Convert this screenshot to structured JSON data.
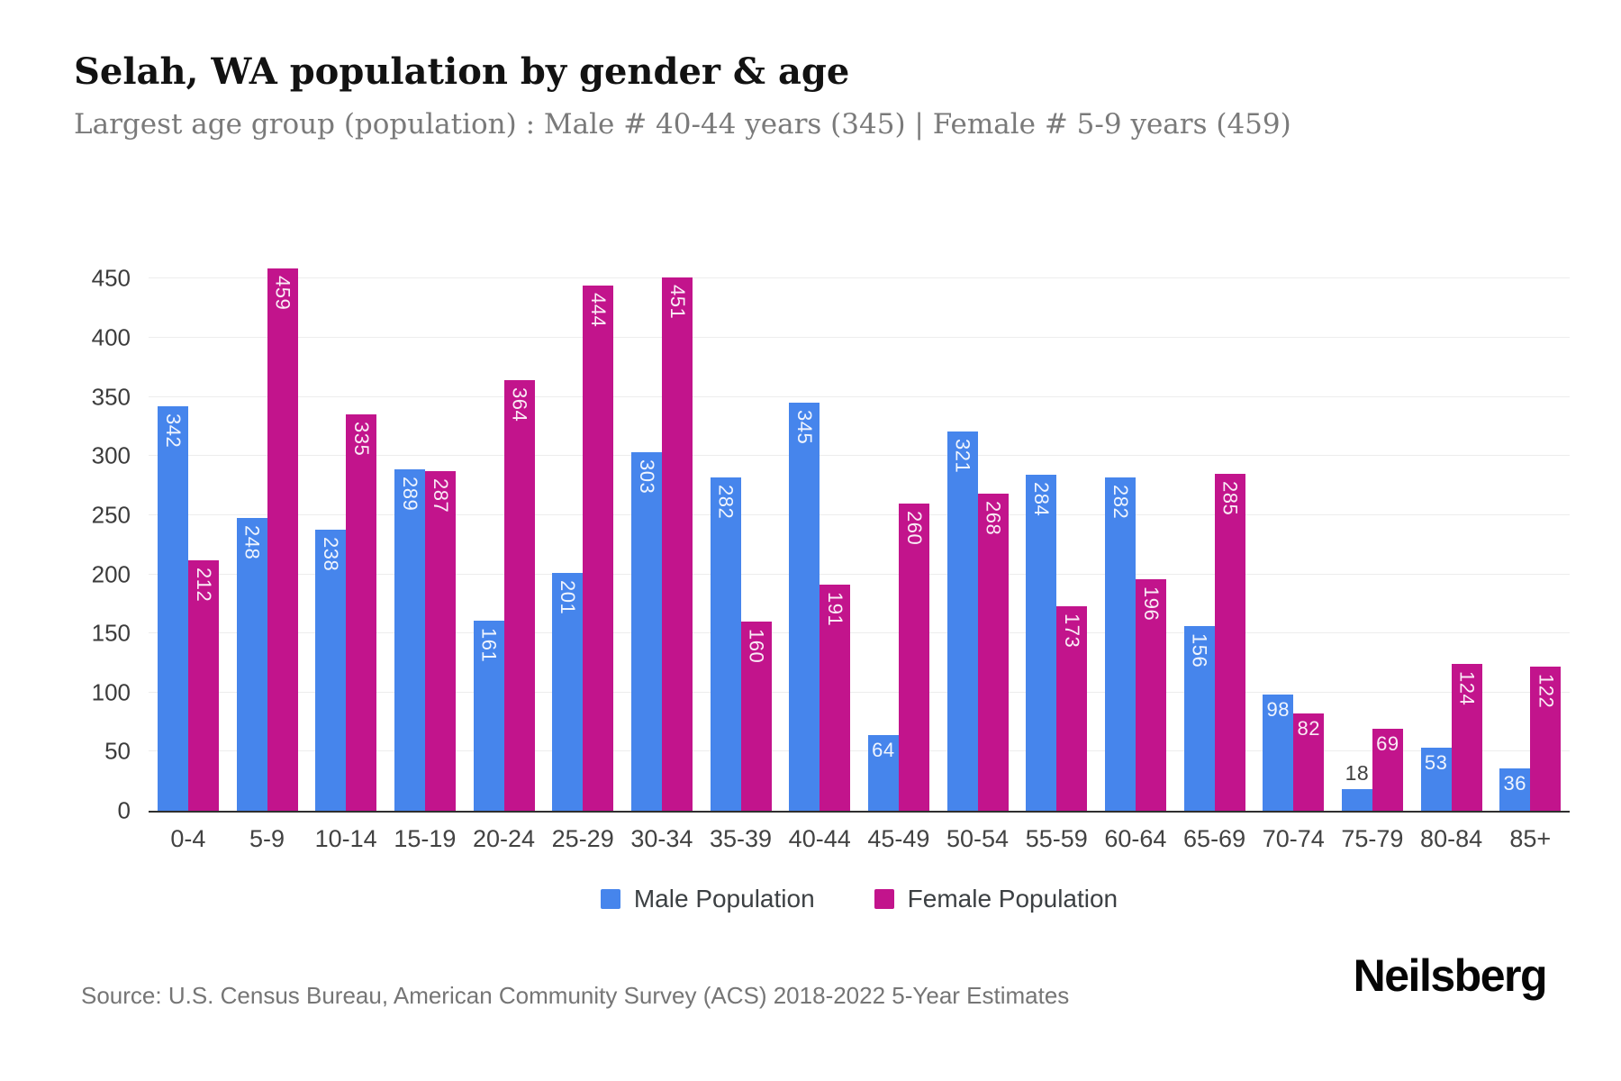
{
  "header": {
    "title": "Selah, WA population by gender & age",
    "subtitle": "Largest age group (population) : Male # 40-44 years (345) | Female # 5-9 years (459)"
  },
  "chart_data": {
    "type": "bar",
    "title": "Selah, WA population by gender & age",
    "categories": [
      "0-4",
      "5-9",
      "10-14",
      "15-19",
      "20-24",
      "25-29",
      "30-34",
      "35-39",
      "40-44",
      "45-49",
      "50-54",
      "55-59",
      "60-64",
      "65-69",
      "70-74",
      "75-79",
      "80-84",
      "85+"
    ],
    "series": [
      {
        "name": "Male Population",
        "color": "#4685ec",
        "values": [
          342,
          248,
          238,
          289,
          161,
          201,
          303,
          282,
          345,
          64,
          321,
          284,
          282,
          156,
          98,
          18,
          53,
          36
        ]
      },
      {
        "name": "Female Population",
        "color": "#c2148c",
        "values": [
          212,
          459,
          335,
          287,
          364,
          444,
          451,
          160,
          191,
          260,
          268,
          173,
          196,
          285,
          82,
          69,
          124,
          122
        ]
      }
    ],
    "xlabel": "",
    "ylabel": "",
    "ylim": [
      0,
      480
    ],
    "yticks": [
      0,
      50,
      100,
      150,
      200,
      250,
      300,
      350,
      400,
      450
    ],
    "grid": true,
    "legend_position": "bottom",
    "value_labels": "white inside bar top (rotated vertical on tall bars), dark gray above bar when bar too short"
  },
  "colors": {
    "male": "#4685ec",
    "female": "#c2148c",
    "gridline": "#ededed",
    "axis_line": "#2f2f2f",
    "tick_text": "#3c3c3c",
    "muted_text": "#757575"
  },
  "footer": {
    "source": "Source: U.S. Census Bureau, American Community Survey (ACS) 2018-2022 5-Year Estimates",
    "brand": "Neilsberg"
  }
}
